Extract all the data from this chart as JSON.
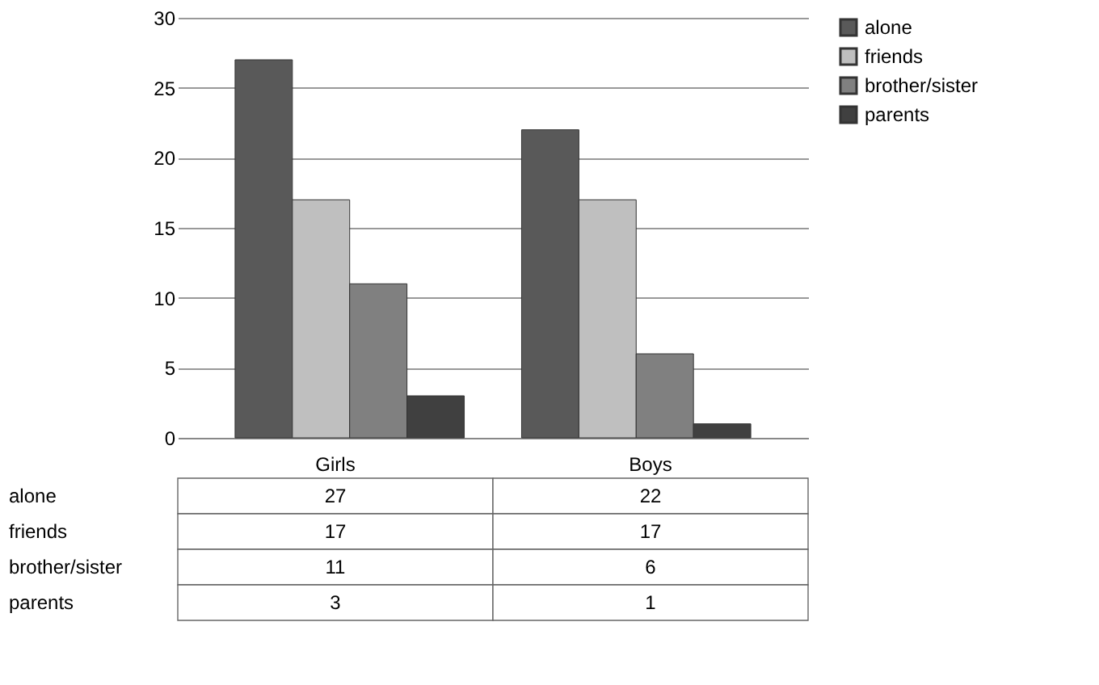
{
  "chart_data": {
    "type": "bar",
    "categories": [
      "Girls",
      "Boys"
    ],
    "series": [
      {
        "name": "alone",
        "color": "#595959",
        "values": [
          27,
          22
        ]
      },
      {
        "name": "friends",
        "color": "#bfbfbf",
        "values": [
          17,
          17
        ]
      },
      {
        "name": "brother/sister",
        "color": "#808080",
        "values": [
          11,
          6
        ]
      },
      {
        "name": "parents",
        "color": "#404040",
        "values": [
          3,
          1
        ]
      }
    ],
    "ylim": [
      0,
      30
    ],
    "yticks": [
      0,
      5,
      10,
      15,
      20,
      25,
      30
    ],
    "grid": "y",
    "legend": "right",
    "data_labels": true
  }
}
